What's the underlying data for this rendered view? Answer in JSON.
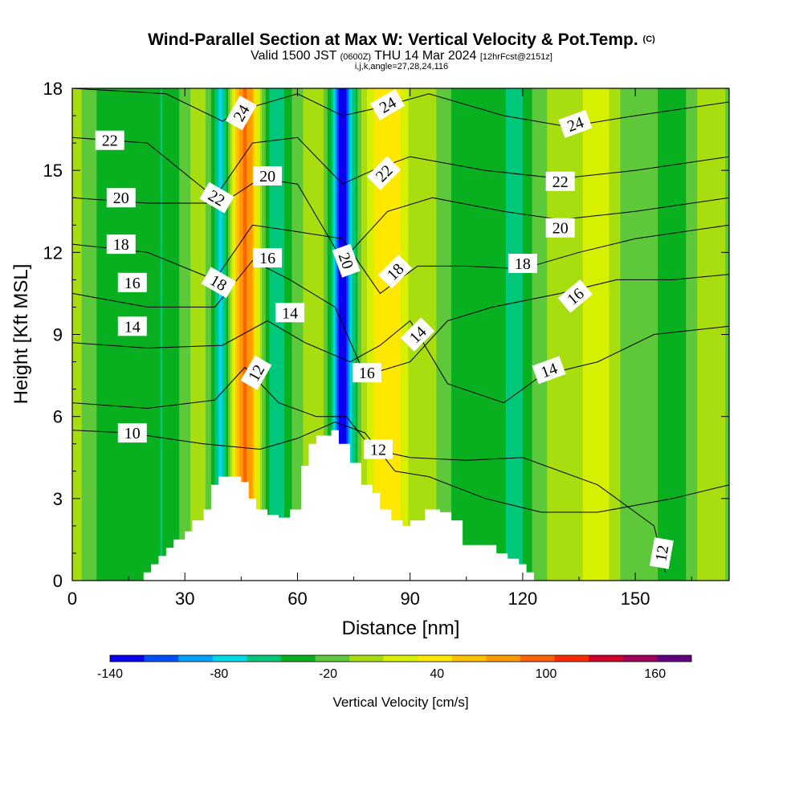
{
  "header": {
    "title": "Wind-Parallel Section at Max W: Vertical Velocity & Pot.Temp.",
    "copyright": "(C)",
    "valid_prefix": "Valid 1500 JST",
    "valid_utc": "(0600Z)",
    "valid_date": "THU 14 Mar 2024",
    "forecast": "[12hrFcst@2151z]",
    "indices": "i,j,k,angle=27,28,24,116"
  },
  "colors": {
    "palette": [
      "#0a00f0",
      "#0050ff",
      "#00a0ff",
      "#00d8ea",
      "#00c87a",
      "#08b020",
      "#5cc83a",
      "#a8dd10",
      "#d6f000",
      "#ffe800",
      "#ffc000",
      "#ff9a00",
      "#ff6200",
      "#ff2a00",
      "#d0002c",
      "#a0005a",
      "#600080"
    ],
    "terrain": "#ffffff",
    "contour": "#000000"
  },
  "chart_data": {
    "type": "contour",
    "xlabel": "Distance [nm]",
    "ylabel": "Height [Kft MSL]",
    "xlim": [
      0,
      175
    ],
    "ylim": [
      0,
      18
    ],
    "xticks": [
      0,
      30,
      60,
      90,
      120,
      150
    ],
    "yticks": [
      0,
      3,
      6,
      9,
      12,
      15,
      18
    ],
    "colorbar": {
      "label": "Vertical Velocity [cm/s]",
      "levels": [
        -140,
        -120,
        -100,
        -80,
        -60,
        -40,
        -20,
        0,
        20,
        40,
        60,
        80,
        100,
        120,
        140,
        160,
        180
      ],
      "tick_values": [
        -140,
        -80,
        -20,
        40,
        100,
        160
      ]
    },
    "vertical_velocity_bands": [
      {
        "x": 2,
        "w": 15,
        "widthNm": 5
      },
      {
        "x": 10,
        "w": -25,
        "widthNm": 6
      },
      {
        "x": 24,
        "w": -30,
        "widthNm": 5
      },
      {
        "x": 34,
        "w": 20,
        "widthNm": 4
      },
      {
        "x": 40,
        "w": -65,
        "widthNm": 3
      },
      {
        "x": 46,
        "w": 115,
        "widthNm": 4
      },
      {
        "x": 54,
        "w": -45,
        "widthNm": 4
      },
      {
        "x": 65,
        "w": 25,
        "widthNm": 4
      },
      {
        "x": 72,
        "w": -130,
        "widthNm": 3
      },
      {
        "x": 84,
        "w": 70,
        "widthNm": 6
      },
      {
        "x": 97,
        "w": 15,
        "widthNm": 5
      },
      {
        "x": 105,
        "w": -30,
        "widthNm": 6
      },
      {
        "x": 118,
        "w": -40,
        "widthNm": 4
      },
      {
        "x": 130,
        "w": 15,
        "widthNm": 6
      },
      {
        "x": 140,
        "w": 45,
        "widthNm": 5
      },
      {
        "x": 160,
        "w": -30,
        "widthNm": 4
      },
      {
        "x": 170,
        "w": 20,
        "widthNm": 5
      }
    ],
    "terrain_profile": [
      [
        19,
        0.3
      ],
      [
        21,
        0.6
      ],
      [
        23,
        0.9
      ],
      [
        25,
        1.2
      ],
      [
        27,
        1.5
      ],
      [
        30,
        1.8
      ],
      [
        32,
        2.2
      ],
      [
        35,
        2.6
      ],
      [
        37,
        3.5
      ],
      [
        39,
        3.8
      ],
      [
        45,
        3.6
      ],
      [
        47,
        3.0
      ],
      [
        49,
        2.6
      ],
      [
        52,
        2.4
      ],
      [
        55,
        2.3
      ],
      [
        58,
        2.6
      ],
      [
        61,
        4.2
      ],
      [
        63,
        5.0
      ],
      [
        65,
        5.3
      ],
      [
        69,
        5.5
      ],
      [
        71,
        5.0
      ],
      [
        74,
        4.3
      ],
      [
        77,
        3.5
      ],
      [
        80,
        3.2
      ],
      [
        82,
        2.6
      ],
      [
        85,
        2.2
      ],
      [
        88,
        2.0
      ],
      [
        90,
        2.2
      ],
      [
        94,
        2.6
      ],
      [
        98,
        2.5
      ],
      [
        101,
        2.2
      ],
      [
        104,
        1.3
      ],
      [
        110,
        1.3
      ],
      [
        113,
        1.0
      ],
      [
        116,
        0.8
      ],
      [
        119,
        0.6
      ],
      [
        121,
        0.3
      ]
    ],
    "theta_contours": [
      {
        "level": "10",
        "pts": [
          [
            0,
            5.5
          ],
          [
            15,
            5.4
          ],
          [
            35,
            5.0
          ],
          [
            50,
            4.8
          ],
          [
            60,
            5.2
          ],
          [
            70,
            5.8
          ],
          [
            78,
            5.4
          ],
          [
            86,
            4.0
          ],
          [
            95,
            3.8
          ],
          [
            110,
            3.0
          ],
          [
            125,
            2.5
          ],
          [
            140,
            2.5
          ],
          [
            160,
            3.0
          ],
          [
            175,
            3.5
          ]
        ]
      },
      {
        "level": "12",
        "pts": [
          [
            0,
            6.5
          ],
          [
            20,
            6.3
          ],
          [
            38,
            6.6
          ],
          [
            46,
            7.8
          ],
          [
            55,
            6.5
          ],
          [
            65,
            6.0
          ],
          [
            73,
            6.0
          ],
          [
            80,
            4.8
          ],
          [
            90,
            4.5
          ],
          [
            105,
            4.4
          ],
          [
            120,
            4.5
          ],
          [
            140,
            3.5
          ],
          [
            155,
            2.0
          ],
          [
            158,
            0.3
          ]
        ]
      },
      {
        "level": "14",
        "pts": [
          [
            0,
            8.7
          ],
          [
            20,
            8.5
          ],
          [
            40,
            8.6
          ],
          [
            52,
            9.5
          ],
          [
            62,
            8.7
          ],
          [
            74,
            8.0
          ],
          [
            82,
            8.6
          ],
          [
            90,
            9.5
          ],
          [
            100,
            7.2
          ],
          [
            115,
            6.5
          ],
          [
            125,
            7.5
          ],
          [
            140,
            8.0
          ],
          [
            155,
            9.0
          ],
          [
            175,
            9.3
          ]
        ]
      },
      {
        "level": "16",
        "pts": [
          [
            0,
            10.5
          ],
          [
            20,
            10.0
          ],
          [
            38,
            10.0
          ],
          [
            48,
            11.7
          ],
          [
            58,
            11.0
          ],
          [
            70,
            10.0
          ],
          [
            78,
            7.5
          ],
          [
            90,
            8.0
          ],
          [
            100,
            9.5
          ],
          [
            112,
            10.0
          ],
          [
            130,
            10.5
          ],
          [
            145,
            11.0
          ],
          [
            160,
            11.0
          ],
          [
            175,
            11.2
          ]
        ]
      },
      {
        "level": "18",
        "pts": [
          [
            0,
            12.3
          ],
          [
            20,
            12.0
          ],
          [
            38,
            11.0
          ],
          [
            48,
            13.0
          ],
          [
            58,
            12.8
          ],
          [
            72,
            12.5
          ],
          [
            82,
            10.5
          ],
          [
            92,
            11.5
          ],
          [
            105,
            11.5
          ],
          [
            120,
            11.4
          ],
          [
            135,
            12.0
          ],
          [
            150,
            12.5
          ],
          [
            175,
            13.0
          ]
        ]
      },
      {
        "level": "20",
        "pts": [
          [
            0,
            14.0
          ],
          [
            20,
            13.8
          ],
          [
            40,
            13.8
          ],
          [
            50,
            14.7
          ],
          [
            60,
            14.5
          ],
          [
            72,
            11.7
          ],
          [
            84,
            13.5
          ],
          [
            96,
            14.0
          ],
          [
            115,
            13.5
          ],
          [
            130,
            13.2
          ],
          [
            150,
            13.5
          ],
          [
            175,
            14.0
          ]
        ]
      },
      {
        "level": "22",
        "pts": [
          [
            0,
            16.2
          ],
          [
            20,
            16.0
          ],
          [
            38,
            14.0
          ],
          [
            48,
            16.0
          ],
          [
            60,
            16.2
          ],
          [
            72,
            14.5
          ],
          [
            80,
            15.0
          ],
          [
            90,
            15.5
          ],
          [
            110,
            15.0
          ],
          [
            130,
            14.7
          ],
          [
            150,
            15.0
          ],
          [
            175,
            15.5
          ]
        ]
      },
      {
        "level": "24",
        "pts": [
          [
            0,
            18.0
          ],
          [
            25,
            17.8
          ],
          [
            40,
            16.8
          ],
          [
            45,
            17.2
          ],
          [
            60,
            17.8
          ],
          [
            72,
            17.0
          ],
          [
            82,
            17.3
          ],
          [
            95,
            17.8
          ],
          [
            115,
            17.0
          ],
          [
            132,
            16.6
          ],
          [
            150,
            17.0
          ],
          [
            175,
            17.5
          ]
        ]
      }
    ],
    "contour_labels": [
      {
        "text": "22",
        "x": 10,
        "y": 16.1,
        "rot": 0
      },
      {
        "text": "20",
        "x": 13,
        "y": 14.0,
        "rot": 0
      },
      {
        "text": "18",
        "x": 13,
        "y": 12.3,
        "rot": 0
      },
      {
        "text": "16",
        "x": 16,
        "y": 10.9,
        "rot": 0
      },
      {
        "text": "14",
        "x": 16,
        "y": 9.3,
        "rot": 0
      },
      {
        "text": "10",
        "x": 16,
        "y": 5.4,
        "rot": 0
      },
      {
        "text": "24",
        "x": 45,
        "y": 17.1,
        "rot": -60
      },
      {
        "text": "22",
        "x": 38.5,
        "y": 14.0,
        "rot": 30
      },
      {
        "text": "20",
        "x": 52,
        "y": 14.8,
        "rot": 0
      },
      {
        "text": "18",
        "x": 39,
        "y": 10.9,
        "rot": 30
      },
      {
        "text": "16",
        "x": 52,
        "y": 11.8,
        "rot": 0
      },
      {
        "text": "14",
        "x": 58,
        "y": 9.8,
        "rot": 0
      },
      {
        "text": "12",
        "x": 49,
        "y": 7.6,
        "rot": -60
      },
      {
        "text": "20",
        "x": 73,
        "y": 11.7,
        "rot": 70
      },
      {
        "text": "24",
        "x": 84,
        "y": 17.4,
        "rot": -30
      },
      {
        "text": "22",
        "x": 83,
        "y": 14.9,
        "rot": -45
      },
      {
        "text": "18",
        "x": 86,
        "y": 11.3,
        "rot": -45
      },
      {
        "text": "14",
        "x": 92,
        "y": 9.0,
        "rot": -45
      },
      {
        "text": "16",
        "x": 78.5,
        "y": 7.6,
        "rot": 0
      },
      {
        "text": "12",
        "x": 81.5,
        "y": 4.8,
        "rot": 0
      },
      {
        "text": "24",
        "x": 134,
        "y": 16.7,
        "rot": -20
      },
      {
        "text": "22",
        "x": 130,
        "y": 14.6,
        "rot": 0
      },
      {
        "text": "20",
        "x": 130,
        "y": 12.9,
        "rot": 0
      },
      {
        "text": "18",
        "x": 120,
        "y": 11.6,
        "rot": 0
      },
      {
        "text": "16",
        "x": 134,
        "y": 10.4,
        "rot": -40
      },
      {
        "text": "14",
        "x": 127,
        "y": 7.7,
        "rot": -20
      },
      {
        "text": "12",
        "x": 157,
        "y": 1.0,
        "rot": -80
      }
    ]
  }
}
